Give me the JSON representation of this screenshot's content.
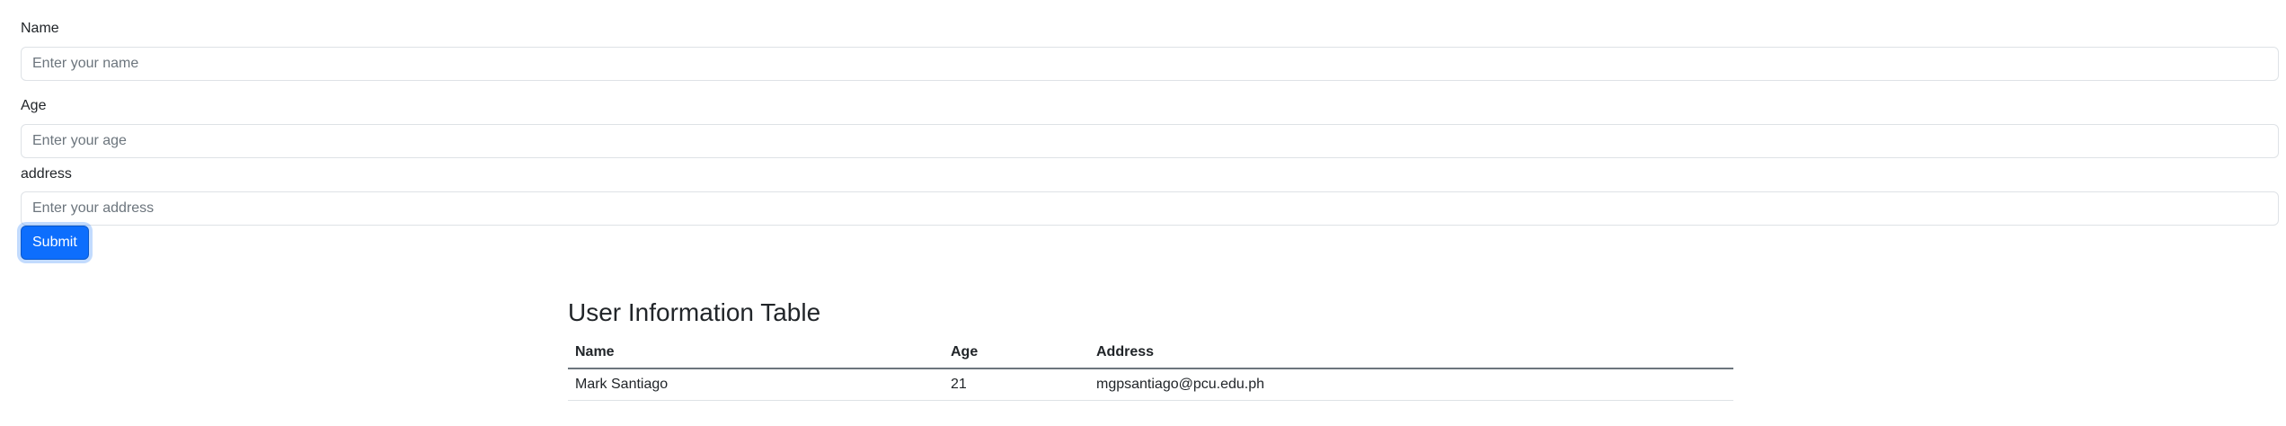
{
  "form": {
    "name": {
      "label": "Name",
      "placeholder": "Enter your name",
      "value": ""
    },
    "age": {
      "label": "Age",
      "placeholder": "Enter your age",
      "value": ""
    },
    "address": {
      "label": "address",
      "placeholder": "Enter your address",
      "value": ""
    },
    "submit_label": "Submit"
  },
  "table": {
    "title": "User Information Table",
    "headers": {
      "name": "Name",
      "age": "Age",
      "address": "Address"
    },
    "rows": [
      {
        "name": "Mark Santiago",
        "age": "21",
        "address": "mgpsantiago@pcu.edu.ph"
      }
    ]
  },
  "colors": {
    "primary": "#0d6efd",
    "border": "#dee2e6",
    "text": "#212529",
    "placeholder": "#6c757d"
  }
}
